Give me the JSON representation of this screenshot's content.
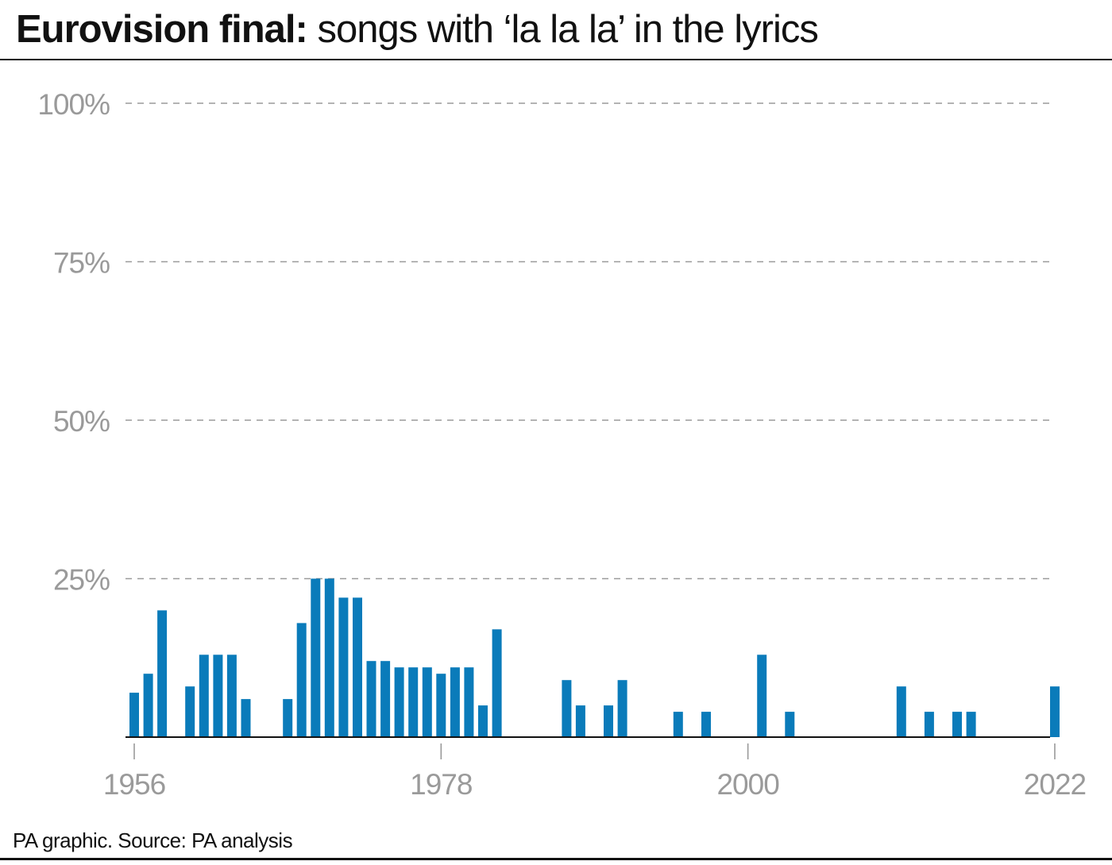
{
  "header": {
    "title_bold": "Eurovision final:",
    "title_rest": " songs with ‘la la la’ in the lyrics"
  },
  "footer": {
    "source": "PA graphic. Source: PA analysis"
  },
  "colors": {
    "bar": "#0a7bba",
    "grid": "#9a9a9a",
    "tick_text": "#9a9a9a",
    "axis": "#111111"
  },
  "chart_data": {
    "type": "bar",
    "title": "Eurovision final: songs with ‘la la la’ in the lyrics",
    "xlabel": "",
    "ylabel": "",
    "x_tick_labels": [
      "1956",
      "1978",
      "2000",
      "2022"
    ],
    "y_tick_labels": [
      "25%",
      "50%",
      "75%",
      "100%"
    ],
    "ylim": [
      0,
      100
    ],
    "grid": "horizontal dashed",
    "legend": "none",
    "years": [
      1956,
      1957,
      1958,
      1959,
      1960,
      1961,
      1962,
      1963,
      1964,
      1965,
      1966,
      1967,
      1968,
      1969,
      1970,
      1971,
      1972,
      1973,
      1974,
      1975,
      1976,
      1977,
      1978,
      1979,
      1980,
      1981,
      1982,
      1983,
      1984,
      1985,
      1986,
      1987,
      1988,
      1989,
      1990,
      1991,
      1992,
      1993,
      1994,
      1995,
      1996,
      1997,
      1998,
      1999,
      2000,
      2001,
      2002,
      2003,
      2004,
      2005,
      2006,
      2007,
      2008,
      2009,
      2010,
      2011,
      2012,
      2013,
      2014,
      2015,
      2016,
      2017,
      2018,
      2019,
      2020,
      2021,
      2022
    ],
    "values": [
      7,
      10,
      20,
      0,
      8,
      13,
      13,
      13,
      6,
      0,
      0,
      6,
      18,
      25,
      25,
      22,
      22,
      12,
      12,
      11,
      11,
      11,
      10,
      11,
      11,
      5,
      17,
      0,
      0,
      0,
      0,
      9,
      5,
      0,
      5,
      9,
      0,
      0,
      0,
      4,
      0,
      4,
      0,
      0,
      0,
      13,
      0,
      4,
      0,
      0,
      0,
      0,
      0,
      0,
      0,
      8,
      0,
      4,
      0,
      4,
      4,
      0,
      0,
      0,
      0,
      0,
      8
    ]
  }
}
